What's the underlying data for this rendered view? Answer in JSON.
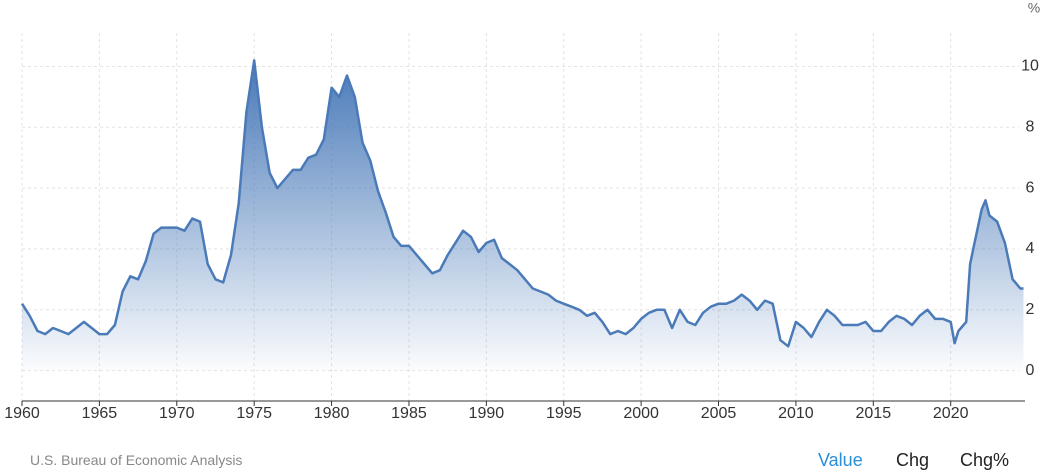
{
  "chart_data": {
    "type": "area",
    "y_unit": "%",
    "x": [
      1960,
      1960.5,
      1961,
      1961.5,
      1962,
      1962.5,
      1963,
      1963.5,
      1964,
      1964.5,
      1965,
      1965.5,
      1966,
      1966.5,
      1967,
      1967.5,
      1968,
      1968.5,
      1969,
      1969.5,
      1970,
      1970.5,
      1971,
      1971.5,
      1972,
      1972.5,
      1973,
      1973.5,
      1974,
      1974.5,
      1975,
      1975.5,
      1976,
      1976.5,
      1977,
      1977.5,
      1978,
      1978.5,
      1979,
      1979.5,
      1980,
      1980.5,
      1981,
      1981.5,
      1982,
      1982.5,
      1983,
      1983.5,
      1984,
      1984.5,
      1985,
      1985.5,
      1986,
      1986.5,
      1987,
      1987.5,
      1988,
      1988.5,
      1989,
      1989.5,
      1990,
      1990.5,
      1991,
      1991.5,
      1992,
      1992.5,
      1993,
      1993.5,
      1994,
      1994.5,
      1995,
      1995.5,
      1996,
      1996.5,
      1997,
      1997.5,
      1998,
      1998.5,
      1999,
      1999.5,
      2000,
      2000.5,
      2001,
      2001.5,
      2002,
      2002.5,
      2003,
      2003.5,
      2004,
      2004.5,
      2005,
      2005.5,
      2006,
      2006.5,
      2007,
      2007.5,
      2008,
      2008.5,
      2009,
      2009.5,
      2010,
      2010.5,
      2011,
      2011.5,
      2012,
      2012.5,
      2013,
      2013.5,
      2014,
      2014.5,
      2015,
      2015.5,
      2016,
      2016.5,
      2017,
      2017.5,
      2018,
      2018.5,
      2019,
      2019.5,
      2020,
      2020.25,
      2020.5,
      2021,
      2021.25,
      2021.5,
      2022,
      2022.25,
      2022.5,
      2023,
      2023.5,
      2024,
      2024.5,
      2024.7
    ],
    "series": [
      {
        "name": "Value",
        "color": "#4a7ab8",
        "values": [
          2.2,
          1.8,
          1.3,
          1.2,
          1.4,
          1.3,
          1.2,
          1.4,
          1.6,
          1.4,
          1.2,
          1.2,
          1.5,
          2.6,
          3.1,
          3.0,
          3.6,
          4.5,
          4.7,
          4.7,
          4.7,
          4.6,
          5.0,
          4.9,
          3.5,
          3.0,
          2.9,
          3.8,
          5.5,
          8.5,
          10.2,
          8.0,
          6.5,
          6.0,
          6.3,
          6.6,
          6.6,
          7.0,
          7.1,
          7.6,
          9.3,
          9.0,
          9.7,
          9.0,
          7.5,
          6.9,
          5.9,
          5.2,
          4.4,
          4.1,
          4.1,
          3.8,
          3.5,
          3.2,
          3.3,
          3.8,
          4.2,
          4.6,
          4.4,
          3.9,
          4.2,
          4.3,
          3.7,
          3.5,
          3.3,
          3.0,
          2.7,
          2.6,
          2.5,
          2.3,
          2.2,
          2.1,
          2.0,
          1.8,
          1.9,
          1.6,
          1.2,
          1.3,
          1.2,
          1.4,
          1.7,
          1.9,
          2.0,
          2.0,
          1.4,
          2.0,
          1.6,
          1.5,
          1.9,
          2.1,
          2.2,
          2.2,
          2.3,
          2.5,
          2.3,
          2.0,
          2.3,
          2.2,
          1.0,
          0.8,
          1.6,
          1.4,
          1.1,
          1.6,
          2.0,
          1.8,
          1.5,
          1.5,
          1.5,
          1.6,
          1.3,
          1.3,
          1.6,
          1.8,
          1.7,
          1.5,
          1.8,
          2.0,
          1.7,
          1.7,
          1.6,
          0.9,
          1.3,
          1.6,
          3.5,
          4.1,
          5.3,
          5.6,
          5.1,
          4.9,
          4.2,
          3.0,
          2.7,
          2.7
        ]
      }
    ],
    "xlim": [
      1960,
      2024.8
    ],
    "xticks": [
      1960,
      1965,
      1970,
      1975,
      1980,
      1985,
      1990,
      1995,
      2000,
      2005,
      2010,
      2015,
      2020
    ],
    "ylim": [
      -1,
      11.1
    ],
    "yticks": [
      0,
      2,
      4,
      6,
      8,
      10
    ],
    "grid": true,
    "source": "U.S. Bureau of Economic Analysis",
    "controls": [
      "Value",
      "Chg",
      "Chg%"
    ],
    "active_control": 0
  }
}
